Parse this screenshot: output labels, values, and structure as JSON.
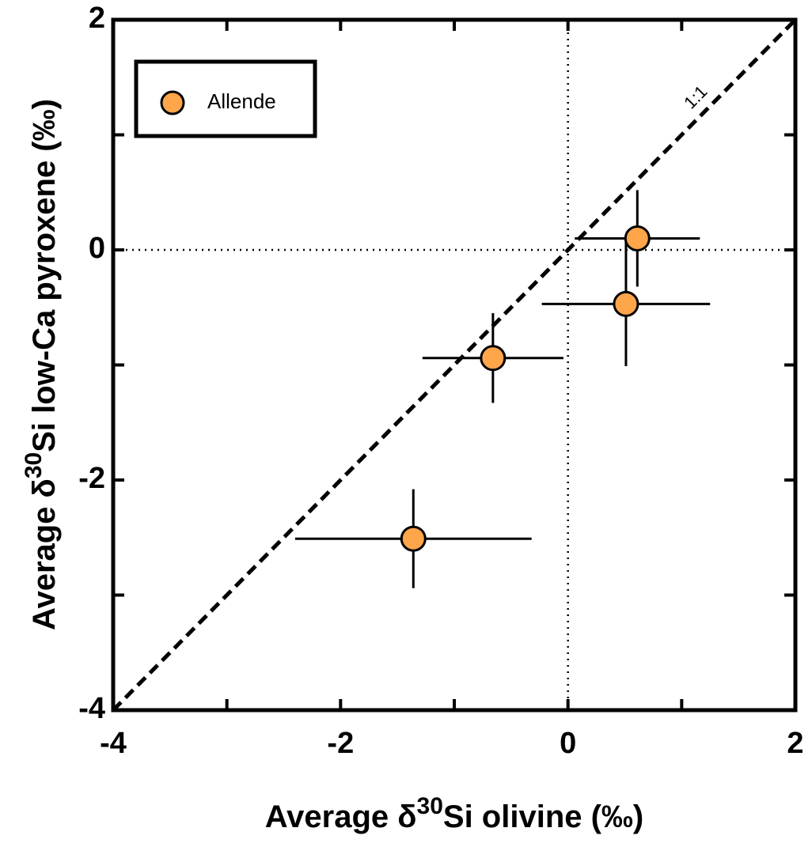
{
  "chart_data": {
    "type": "scatter",
    "x_label": {
      "prefix": "Average δ",
      "sup": "30",
      "suffix": "Si olivine (‰)"
    },
    "y_label": {
      "prefix": "Average δ",
      "sup": "30",
      "suffix": "Si low-Ca pyroxene (‰)"
    },
    "series": [
      {
        "name": "Allende",
        "color": "#ffa54a",
        "x": [
          0.61,
          0.51,
          -0.66,
          -1.36
        ],
        "values": [
          0.1,
          -0.47,
          -0.94,
          -2.51
        ],
        "x_errors": [
          0.55,
          0.74,
          0.62,
          1.04
        ],
        "y_errors": [
          0.42,
          0.54,
          0.39,
          0.43
        ]
      }
    ],
    "xlim": [
      -4,
      2
    ],
    "ylim": [
      -4,
      2
    ],
    "xticks": [
      -4,
      -2,
      0,
      2
    ],
    "yticks": [
      -4,
      -2,
      0,
      2
    ],
    "xminorticks": [
      -3,
      -1,
      1
    ],
    "yminorticks": [
      -3,
      -1,
      1
    ],
    "identity_line": {
      "label": "1:1",
      "style": "dashed"
    },
    "reference_lines": [
      {
        "x": 0,
        "style": "dotted"
      },
      {
        "y": 0,
        "style": "dotted"
      }
    ],
    "legend": "upper left"
  }
}
